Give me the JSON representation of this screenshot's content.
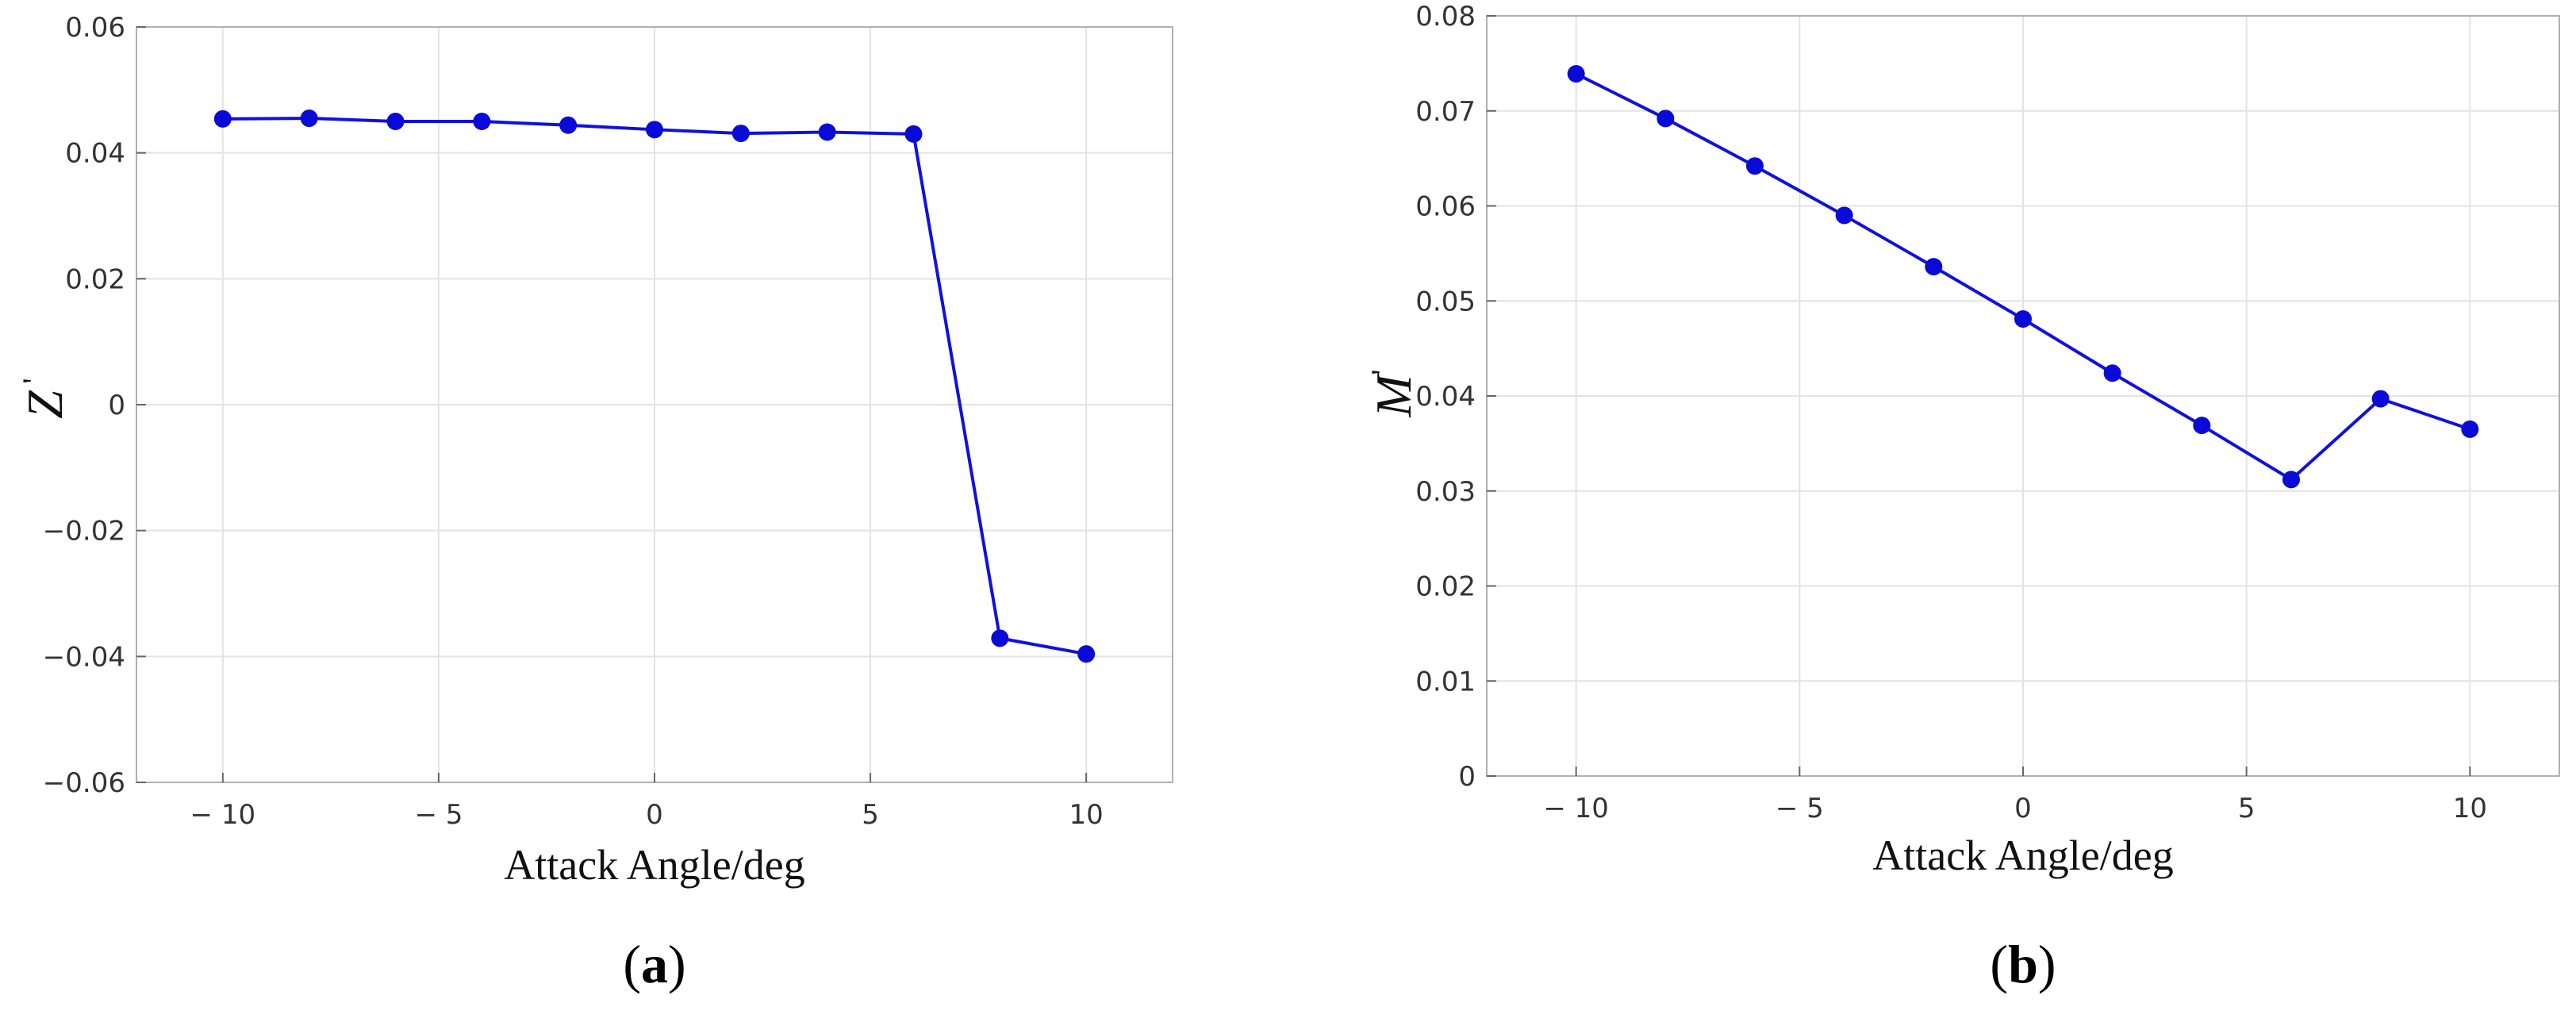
{
  "colors": {
    "line": "#1010e0",
    "marker": "#0a0ad8",
    "grid": "#e3e3e3",
    "axis": "#b0b0b0"
  },
  "chart_data": [
    {
      "type": "line",
      "panel_label": "a",
      "xlabel": "Attack Angle/deg",
      "ylabel": "Z",
      "ylabel_mark": "'",
      "xlim": [
        -12,
        12
      ],
      "ylim": [
        -0.06,
        0.06
      ],
      "grid": true,
      "xticks": [
        -10,
        -5,
        0,
        5,
        10
      ],
      "xtick_labels": [
        "− 10",
        "− 5",
        "0",
        "5",
        "10"
      ],
      "yticks": [
        -0.06,
        -0.04,
        -0.02,
        0,
        0.02,
        0.04,
        0.06
      ],
      "ytick_labels": [
        "−0.06",
        "−0.04",
        "−0.02",
        "0",
        "0.02",
        "0.04",
        "0.06"
      ],
      "series": [
        {
          "x": [
            -10,
            -8,
            -6,
            -4,
            -2,
            0,
            2,
            4,
            6,
            8,
            10
          ],
          "y": [
            0.0454,
            0.0455,
            0.045,
            0.045,
            0.0444,
            0.0437,
            0.0431,
            0.0433,
            0.043,
            -0.0371,
            -0.0396
          ]
        }
      ]
    },
    {
      "type": "line",
      "panel_label": "b",
      "xlabel": "Attack Angle/deg",
      "ylabel": "M",
      "ylabel_mark": "'",
      "xlim": [
        -12,
        12
      ],
      "ylim": [
        0,
        0.08
      ],
      "grid": true,
      "xticks": [
        -10,
        -5,
        0,
        5,
        10
      ],
      "xtick_labels": [
        "− 10",
        "− 5",
        "0",
        "5",
        "10"
      ],
      "yticks": [
        0,
        0.01,
        0.02,
        0.03,
        0.04,
        0.05,
        0.06,
        0.07,
        0.08
      ],
      "ytick_labels": [
        "0",
        "0.01",
        "0.02",
        "0.03",
        "0.04",
        "0.05",
        "0.06",
        "0.07",
        "0.08"
      ],
      "series": [
        {
          "x": [
            -10,
            -8,
            -6,
            -4,
            -2,
            0,
            2,
            4,
            6,
            8,
            10
          ],
          "y": [
            0.0739,
            0.0692,
            0.0642,
            0.059,
            0.0536,
            0.0481,
            0.0424,
            0.0369,
            0.0312,
            0.0397,
            0.0365
          ]
        }
      ]
    }
  ]
}
